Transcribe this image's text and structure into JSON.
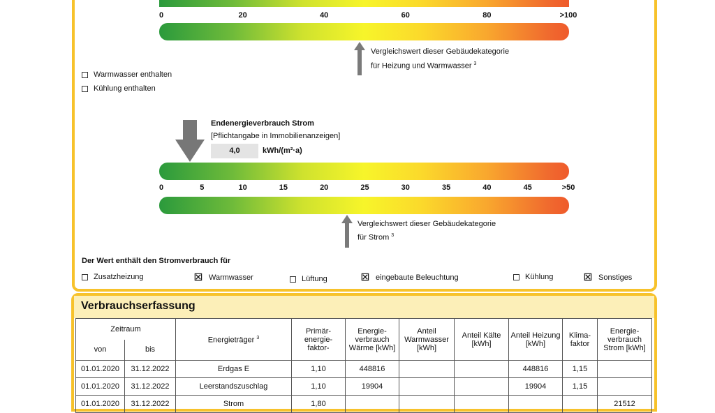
{
  "heat_scale": {
    "ticks": [
      "0",
      "20",
      "40",
      "60",
      "80",
      ">100"
    ],
    "comparison_text_1": "Vergleichswert dieser Gebäudekategorie",
    "comparison_text_2": "für Heizung und Warmwasser",
    "footnote": "3"
  },
  "heat_checkboxes": [
    {
      "label": "Warmwasser enthalten",
      "checked": false
    },
    {
      "label": "Kühlung enthalten",
      "checked": false
    }
  ],
  "power": {
    "title": "Endenergieverbrauch Strom",
    "subtitle": "[Pflichtangabe in Immobilienanzeigen]",
    "value": "4,0",
    "unit": "kWh/(m²·a)",
    "ticks": [
      "0",
      "5",
      "10",
      "15",
      "20",
      "25",
      "30",
      "35",
      "40",
      "45",
      ">50"
    ],
    "comparison_text_1": "Vergleichswert dieser Gebäudekategorie",
    "comparison_text_2": "für Strom",
    "footnote": "3",
    "includes_label": "Der Wert enthält den Stromverbrauch für",
    "includes": [
      {
        "label": "Zusatzheizung",
        "checked": false
      },
      {
        "label": "Warmwasser",
        "checked": true
      },
      {
        "label": "Lüftung",
        "checked": false
      },
      {
        "label": "eingebaute Beleuchtung",
        "checked": true
      },
      {
        "label": "Kühlung",
        "checked": false
      },
      {
        "label": "Sonstiges",
        "checked": true
      }
    ]
  },
  "consumption": {
    "title": "Verbrauchserfassung",
    "headers": {
      "period": "Zeitraum",
      "from": "von",
      "to": "bis",
      "carrier": "Energieträger",
      "carrier_sup": "3",
      "pef": "Primär- energie- faktor-",
      "heat": "Energie- verbrauch Wärme [kWh]",
      "hot_water": "Anteil Warmwasser [kWh]",
      "cold": "Anteil Kälte [kWh]",
      "heating": "Anteil Heizung [kWh]",
      "climate": "Klima- faktor",
      "power": "Energie- verbrauch Strom [kWh]"
    },
    "rows": [
      [
        "01.01.2020",
        "31.12.2022",
        "Erdgas E",
        "1,10",
        "448816",
        "",
        "",
        "448816",
        "1,15",
        ""
      ],
      [
        "01.01.2020",
        "31.12.2022",
        "Leerstandszuschlag",
        "1,10",
        "19904",
        "",
        "",
        "19904",
        "1,15",
        ""
      ],
      [
        "01.01.2020",
        "31.12.2022",
        "Strom",
        "1,80",
        "",
        "",
        "",
        "",
        "",
        "21512"
      ]
    ]
  }
}
